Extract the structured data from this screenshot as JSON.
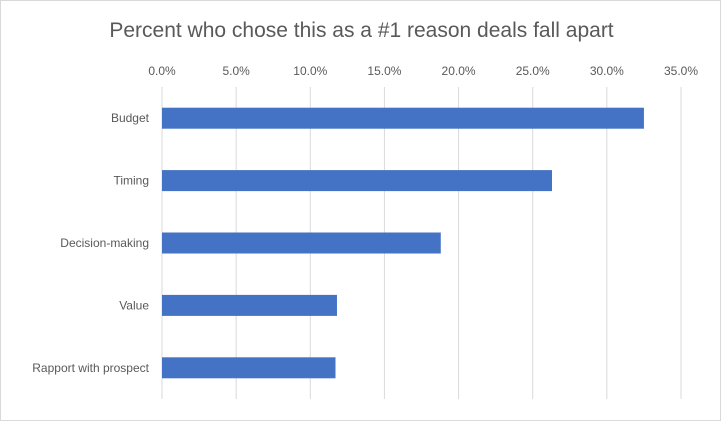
{
  "chart_data": {
    "type": "bar",
    "orientation": "horizontal",
    "title": "Percent who chose this as a #1 reason deals fall apart",
    "categories": [
      "Budget",
      "Timing",
      "Decision-making",
      "Value",
      "Rapport with prospect"
    ],
    "values": [
      32.5,
      26.3,
      18.8,
      11.8,
      11.7
    ],
    "xlim": [
      0,
      35
    ],
    "x_ticks": [
      "0.0%",
      "5.0%",
      "10.0%",
      "15.0%",
      "20.0%",
      "25.0%",
      "30.0%",
      "35.0%"
    ],
    "x_axis_position": "top",
    "grid": true,
    "legend": "none",
    "colors": {
      "bar": "#4472C4",
      "grid": "#d9d9d9",
      "text": "#595959"
    }
  }
}
